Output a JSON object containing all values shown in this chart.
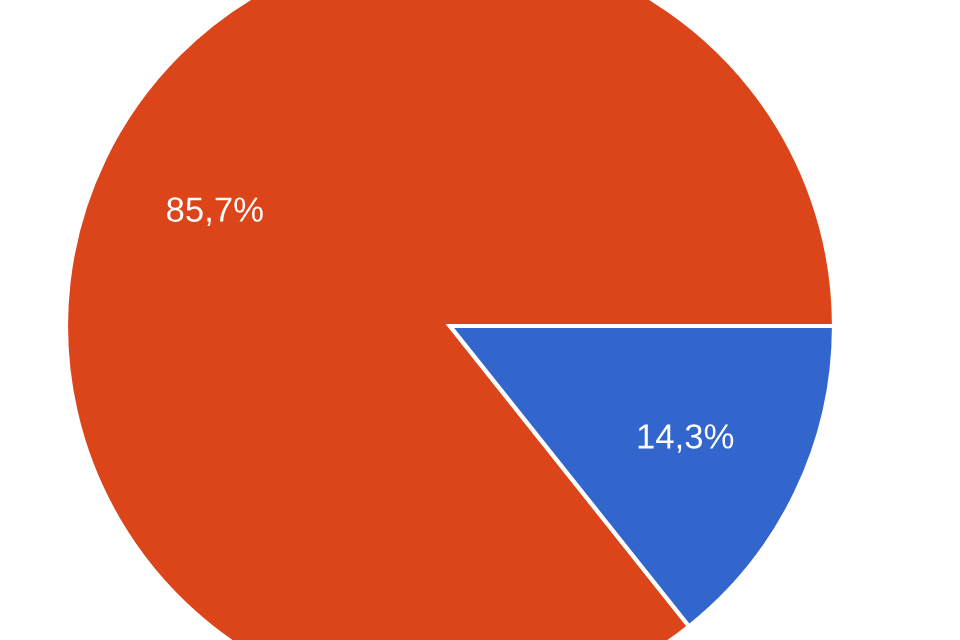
{
  "chart_data": {
    "type": "pie",
    "categories": [
      null,
      null
    ],
    "values": [
      85.7,
      14.3
    ],
    "colors": [
      "#dc4419",
      "#3366cc"
    ],
    "value_labels": [
      "85,7%",
      "14,3%"
    ]
  }
}
